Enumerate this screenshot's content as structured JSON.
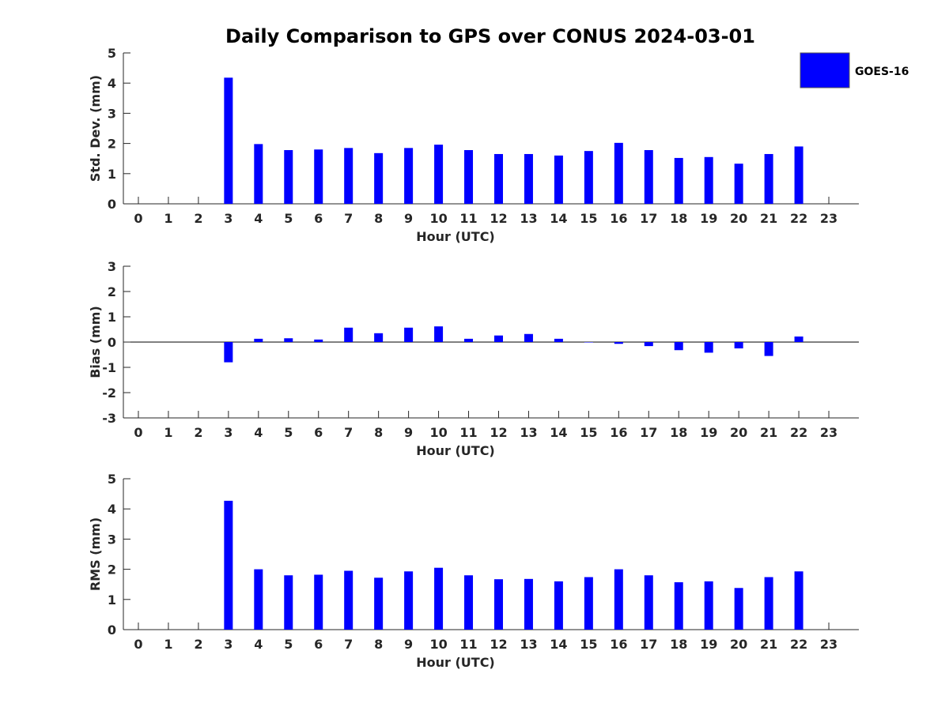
{
  "title": "Daily Comparison to GPS over CONUS 2024-03-01",
  "legend": {
    "label": "GOES-16",
    "color": "#0000ff",
    "position": "top-right"
  },
  "chart_data": [
    {
      "id": "std",
      "type": "bar",
      "title": "Daily Comparison to GPS over CONUS 2024-03-01",
      "xlabel": "Hour (UTC)",
      "ylabel": "Std. Dev. (mm)",
      "categories": [
        "0",
        "1",
        "2",
        "3",
        "4",
        "5",
        "6",
        "7",
        "8",
        "9",
        "10",
        "11",
        "12",
        "13",
        "14",
        "15",
        "16",
        "17",
        "18",
        "19",
        "20",
        "21",
        "22",
        "23"
      ],
      "yticks": [
        "0",
        "1",
        "2",
        "3",
        "4",
        "5"
      ],
      "ylim": [
        0,
        5
      ],
      "series": [
        {
          "name": "GOES-16",
          "values": [
            null,
            null,
            null,
            4.18,
            1.98,
            1.78,
            1.8,
            1.85,
            1.68,
            1.85,
            1.96,
            1.78,
            1.65,
            1.65,
            1.6,
            1.75,
            2.02,
            1.78,
            1.52,
            1.55,
            1.33,
            1.65,
            1.9,
            null
          ]
        }
      ]
    },
    {
      "id": "bias",
      "type": "bar",
      "xlabel": "Hour (UTC)",
      "ylabel": "Bias (mm)",
      "categories": [
        "0",
        "1",
        "2",
        "3",
        "4",
        "5",
        "6",
        "7",
        "8",
        "9",
        "10",
        "11",
        "12",
        "13",
        "14",
        "15",
        "16",
        "17",
        "18",
        "19",
        "20",
        "21",
        "22",
        "23"
      ],
      "yticks": [
        "-3",
        "-2",
        "-1",
        "0",
        "1",
        "2",
        "3"
      ],
      "ylim": [
        -3,
        3
      ],
      "zero_line": true,
      "series": [
        {
          "name": "GOES-16",
          "values": [
            null,
            null,
            null,
            -0.8,
            0.13,
            0.15,
            0.1,
            0.57,
            0.35,
            0.57,
            0.62,
            0.13,
            0.26,
            0.32,
            0.13,
            -0.01,
            -0.07,
            -0.16,
            -0.32,
            -0.42,
            -0.25,
            -0.55,
            0.22,
            null
          ]
        }
      ]
    },
    {
      "id": "rms",
      "type": "bar",
      "xlabel": "Hour (UTC)",
      "ylabel": "RMS (mm)",
      "categories": [
        "0",
        "1",
        "2",
        "3",
        "4",
        "5",
        "6",
        "7",
        "8",
        "9",
        "10",
        "11",
        "12",
        "13",
        "14",
        "15",
        "16",
        "17",
        "18",
        "19",
        "20",
        "21",
        "22",
        "23"
      ],
      "yticks": [
        "0",
        "1",
        "2",
        "3",
        "4",
        "5"
      ],
      "ylim": [
        0,
        5
      ],
      "series": [
        {
          "name": "GOES-16",
          "values": [
            null,
            null,
            null,
            4.27,
            2.0,
            1.8,
            1.82,
            1.95,
            1.72,
            1.93,
            2.05,
            1.8,
            1.67,
            1.68,
            1.6,
            1.74,
            2.0,
            1.8,
            1.57,
            1.6,
            1.38,
            1.74,
            1.93,
            null
          ]
        }
      ]
    }
  ]
}
